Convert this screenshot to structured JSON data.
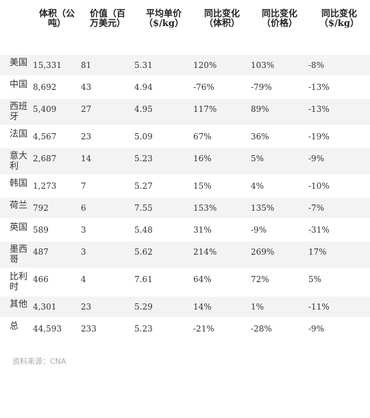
{
  "table": {
    "header": [
      "",
      "体积（公吨）",
      "价值（百万美元）",
      "平均单价（$/kg）",
      "同比变化（体积）",
      "同比变化（价格）",
      "同比变化（$/kg）"
    ],
    "rows": [
      [
        "美国",
        "15,331",
        "81",
        "5.31",
        "120%",
        "103%",
        "-8%"
      ],
      [
        "中国",
        "8,692",
        "43",
        "4.94",
        "-76%",
        "-79%",
        "-13%"
      ],
      [
        "西班牙",
        "5,409",
        "27",
        "4.95",
        "117%",
        "89%",
        "-13%"
      ],
      [
        "法国",
        "4,567",
        "23",
        "5.09",
        "67%",
        "36%",
        "-19%"
      ],
      [
        "意大利",
        "2,687",
        "14",
        "5.23",
        "16%",
        "5%",
        "-9%"
      ],
      [
        "韩国",
        "1,273",
        "7",
        "5.27",
        "15%",
        "4%",
        "-10%"
      ],
      [
        "荷兰",
        "792",
        "6",
        "7.55",
        "153%",
        "135%",
        "-7%"
      ],
      [
        "英国",
        "589",
        "3",
        "5.48",
        "31%",
        "-9%",
        "-31%"
      ],
      [
        "墨西哥",
        "487",
        "3",
        "5.62",
        "214%",
        "269%",
        "17%"
      ],
      [
        "比利时",
        "466",
        "4",
        "7.61",
        "64%",
        "72%",
        "5%"
      ],
      [
        "其他",
        "4,301",
        "23",
        "5.29",
        "14%",
        "1%",
        "-11%"
      ],
      [
        "总",
        "44,593",
        "233",
        "5.23",
        "-21%",
        "-28%",
        "-9%"
      ]
    ]
  },
  "source": "资料来源：CNA"
}
